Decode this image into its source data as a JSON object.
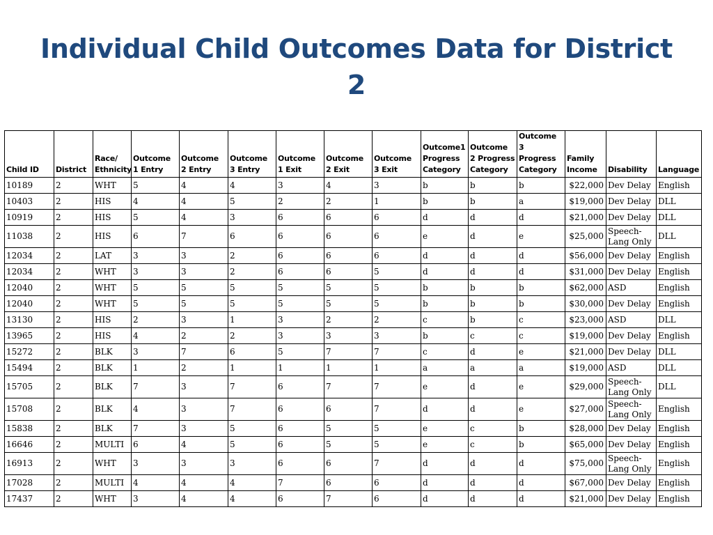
{
  "slide": {
    "title": "Individual Child Outcomes Data for District 2"
  },
  "table": {
    "headers": [
      "Child ID",
      "District",
      "Race/ Ethnicity",
      "Outcome 1 Entry",
      "Outcome 2 Entry",
      "Outcome 3 Entry",
      "Outcome 1 Exit",
      "Outcome 2 Exit",
      "Outcome 3 Exit",
      "Outcome1 Progress Category",
      "Outcome 2 Progress Category",
      "Outcome 3 Progress Category",
      "Family Income",
      "Disability",
      "Language"
    ],
    "rows": [
      [
        "10189",
        "2",
        "WHT",
        "5",
        "4",
        "4",
        "3",
        "4",
        "3",
        "b",
        "b",
        "b",
        "$22,000",
        "Dev Delay",
        "English"
      ],
      [
        "10403",
        "2",
        "HIS",
        "4",
        "4",
        "5",
        "2",
        "2",
        "1",
        "b",
        "b",
        "a",
        "$19,000",
        "Dev Delay",
        "DLL"
      ],
      [
        "10919",
        "2",
        "HIS",
        "5",
        "4",
        "3",
        "6",
        "6",
        "6",
        "d",
        "d",
        "d",
        "$21,000",
        "Dev Delay",
        "DLL"
      ],
      [
        "11038",
        "2",
        "HIS",
        "6",
        "7",
        "6",
        "6",
        "6",
        "6",
        "e",
        "d",
        "e",
        "$25,000",
        "Speech-Lang Only",
        "DLL"
      ],
      [
        "12034",
        "2",
        "LAT",
        "3",
        "3",
        "2",
        "6",
        "6",
        "6",
        "d",
        "d",
        "d",
        "$56,000",
        "Dev Delay",
        "English"
      ],
      [
        "12034",
        "2",
        "WHT",
        "3",
        "3",
        "2",
        "6",
        "6",
        "5",
        "d",
        "d",
        "d",
        "$31,000",
        "Dev Delay",
        "English"
      ],
      [
        "12040",
        "2",
        "WHT",
        "5",
        "5",
        "5",
        "5",
        "5",
        "5",
        "b",
        "b",
        "b",
        "$62,000",
        "ASD",
        "English"
      ],
      [
        "12040",
        "2",
        "WHT",
        "5",
        "5",
        "5",
        "5",
        "5",
        "5",
        "b",
        "b",
        "b",
        "$30,000",
        "Dev Delay",
        "English"
      ],
      [
        "13130",
        "2",
        "HIS",
        "2",
        "3",
        "1",
        "3",
        "2",
        "2",
        "c",
        "b",
        "c",
        "$23,000",
        "ASD",
        "DLL"
      ],
      [
        "13965",
        "2",
        "HIS",
        "4",
        "2",
        "2",
        "3",
        "3",
        "3",
        "b",
        "c",
        "c",
        "$19,000",
        "Dev Delay",
        "English"
      ],
      [
        "15272",
        "2",
        "BLK",
        "3",
        "7",
        "6",
        "5",
        "7",
        "7",
        "c",
        "d",
        "e",
        "$21,000",
        "Dev Delay",
        "DLL"
      ],
      [
        "15494",
        "2",
        "BLK",
        "1",
        "2",
        "1",
        "1",
        "1",
        "1",
        "a",
        "a",
        "a",
        "$19,000",
        "ASD",
        "DLL"
      ],
      [
        "15705",
        "2",
        "BLK",
        "7",
        "3",
        "7",
        "6",
        "7",
        "7",
        "e",
        "d",
        "e",
        "$29,000",
        "Speech-Lang Only",
        "DLL"
      ],
      [
        "15708",
        "2",
        "BLK",
        "4",
        "3",
        "7",
        "6",
        "6",
        "7",
        "d",
        "d",
        "e",
        "$27,000",
        "Speech-Lang Only",
        "English"
      ],
      [
        "15838",
        "2",
        "BLK",
        "7",
        "3",
        "5",
        "6",
        "5",
        "5",
        "e",
        "c",
        "b",
        "$28,000",
        "Dev Delay",
        "English"
      ],
      [
        "16646",
        "2",
        "MULTI",
        "6",
        "4",
        "5",
        "6",
        "5",
        "5",
        "e",
        "c",
        "b",
        "$65,000",
        "Dev Delay",
        "English"
      ],
      [
        "16913",
        "2",
        "WHT",
        "3",
        "3",
        "3",
        "6",
        "6",
        "7",
        "d",
        "d",
        "d",
        "$75,000",
        "Speech-Lang Only",
        "English"
      ],
      [
        "17028",
        "2",
        "MULTI",
        "4",
        "4",
        "4",
        "7",
        "6",
        "6",
        "d",
        "d",
        "d",
        "$67,000",
        "Dev Delay",
        "English"
      ],
      [
        "17437",
        "2",
        "WHT",
        "3",
        "4",
        "4",
        "6",
        "7",
        "6",
        "d",
        "d",
        "d",
        "$21,000",
        "Dev Delay",
        "English"
      ]
    ]
  }
}
